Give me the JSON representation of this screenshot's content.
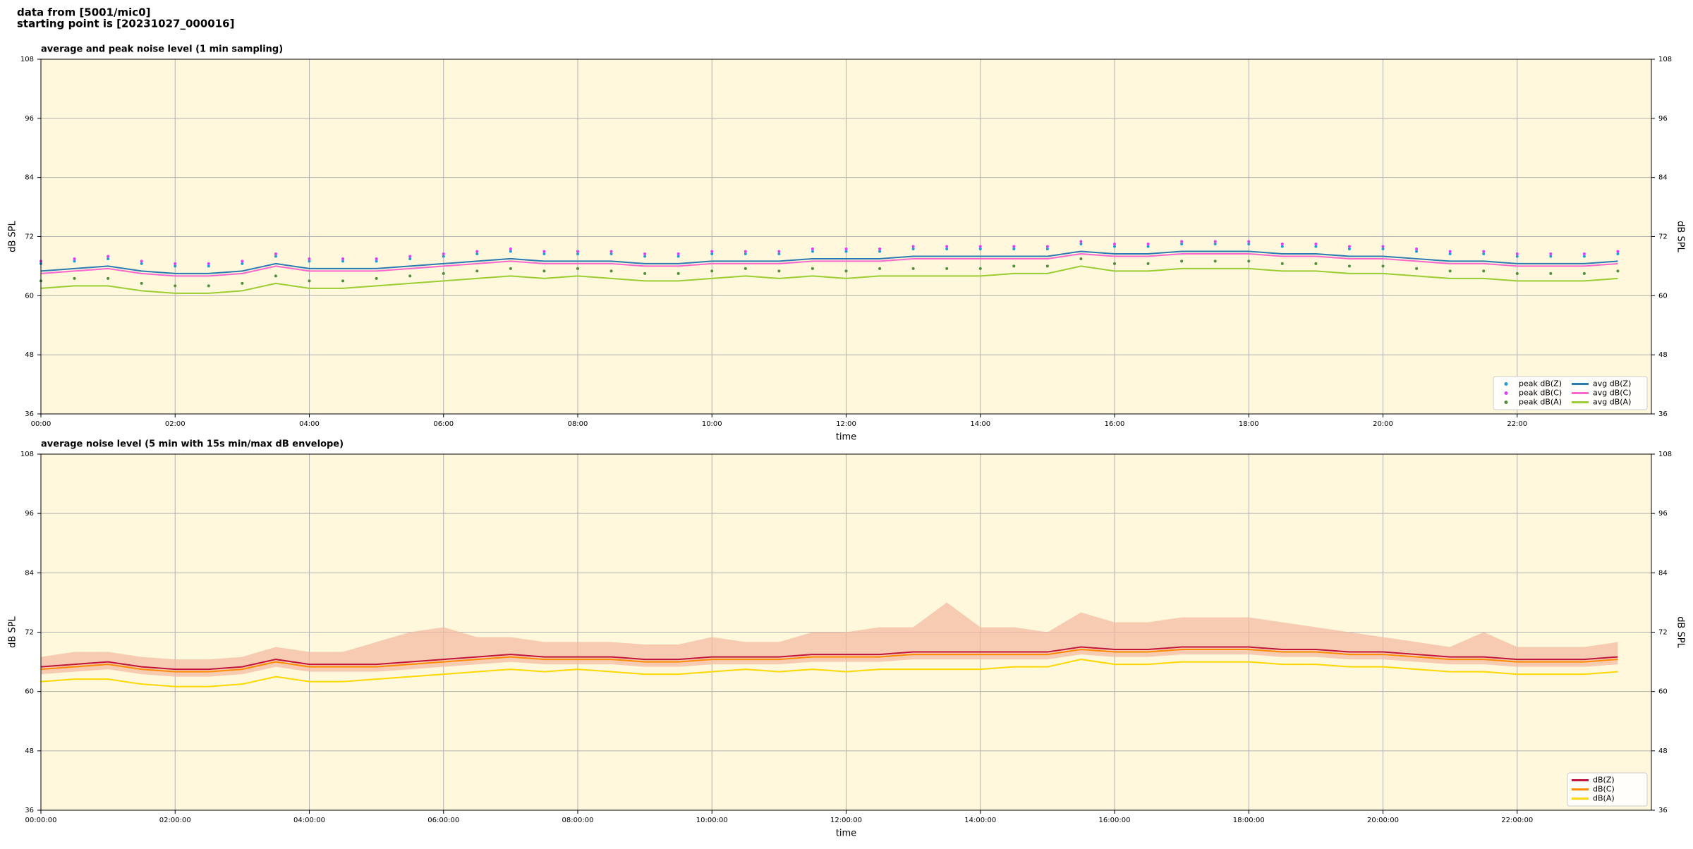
{
  "header": {
    "line1": "data from [5001/mic0]",
    "line2": "starting point is [20231027_000016]"
  },
  "chart_data": [
    {
      "type": "line",
      "title": "average and peak noise level (1 min sampling)",
      "xlabel": "time",
      "ylabel": "dB SPL",
      "xlim": [
        0,
        24
      ],
      "ylim": [
        36,
        108
      ],
      "yticks": [
        36,
        48,
        60,
        72,
        84,
        96,
        108
      ],
      "xticks": [
        {
          "value": 0,
          "label": "00:00"
        },
        {
          "value": 2,
          "label": "02:00"
        },
        {
          "value": 4,
          "label": "04:00"
        },
        {
          "value": 6,
          "label": "06:00"
        },
        {
          "value": 8,
          "label": "08:00"
        },
        {
          "value": 10,
          "label": "10:00"
        },
        {
          "value": 12,
          "label": "12:00"
        },
        {
          "value": 14,
          "label": "14:00"
        },
        {
          "value": 16,
          "label": "16:00"
        },
        {
          "value": 18,
          "label": "18:00"
        },
        {
          "value": 20,
          "label": "20:00"
        },
        {
          "value": 22,
          "label": "22:00"
        }
      ],
      "grid": true,
      "background": "#fff8dc",
      "legend": "lower right",
      "legend_columns": 2,
      "x": [
        0,
        0.5,
        1,
        1.5,
        2,
        2.5,
        3,
        3.5,
        4,
        4.5,
        5,
        5.5,
        6,
        6.5,
        7,
        7.5,
        8,
        8.5,
        9,
        9.5,
        10,
        10.5,
        11,
        11.5,
        12,
        12.5,
        13,
        13.5,
        14,
        14.5,
        15,
        15.5,
        16,
        16.5,
        17,
        17.5,
        18,
        18.5,
        19,
        19.5,
        20,
        20.5,
        21,
        21.5,
        22,
        22.5,
        23,
        23.5
      ],
      "series": [
        {
          "name": "peak dB(Z)",
          "kind": "scatter",
          "color": "#1f9fd5",
          "values": [
            66.5,
            67,
            67.5,
            66.5,
            66,
            66,
            66.5,
            68,
            67,
            67,
            67,
            67.5,
            68,
            68.5,
            69,
            68.5,
            68.5,
            68.5,
            68,
            68,
            68.5,
            68.5,
            68.5,
            69,
            69,
            69,
            69.5,
            69.5,
            69.5,
            69.5,
            69.5,
            70.5,
            70,
            70,
            70.5,
            70.5,
            70.5,
            70,
            70,
            69.5,
            69.5,
            69,
            68.5,
            68.5,
            68,
            68,
            68,
            68.5
          ]
        },
        {
          "name": "peak dB(C)",
          "kind": "scatter",
          "color": "#e040fb",
          "values": [
            67,
            67.5,
            68,
            67,
            66.5,
            66.5,
            67,
            68.5,
            67.5,
            67.5,
            67.5,
            68,
            68.5,
            69,
            69.5,
            69,
            69,
            69,
            68.5,
            68.5,
            69,
            69,
            69,
            69.5,
            69.5,
            69.5,
            70,
            70,
            70,
            70,
            70,
            71,
            70.5,
            70.5,
            71,
            71,
            71,
            70.5,
            70.5,
            70,
            70,
            69.5,
            69,
            69,
            68.5,
            68.5,
            68.5,
            69
          ]
        },
        {
          "name": "peak dB(A)",
          "kind": "scatter",
          "color": "#4f8f3a",
          "values": [
            63,
            63.5,
            63.5,
            62.5,
            62,
            62,
            62.5,
            64,
            63,
            63,
            63.5,
            64,
            64.5,
            65,
            65.5,
            65,
            65.5,
            65,
            64.5,
            64.5,
            65,
            65.5,
            65,
            65.5,
            65,
            65.5,
            65.5,
            65.5,
            65.5,
            66,
            66,
            67.5,
            66.5,
            66.5,
            67,
            67,
            67,
            66.5,
            66.5,
            66,
            66,
            65.5,
            65,
            65,
            64.5,
            64.5,
            64.5,
            65
          ]
        },
        {
          "name": "avg dB(Z)",
          "kind": "line",
          "color": "#2a7bb0",
          "values": [
            65,
            65.5,
            66,
            65,
            64.5,
            64.5,
            65,
            66.5,
            65.5,
            65.5,
            65.5,
            66,
            66.5,
            67,
            67.5,
            67,
            67,
            67,
            66.5,
            66.5,
            67,
            67,
            67,
            67.5,
            67.5,
            67.5,
            68,
            68,
            68,
            68,
            68,
            69,
            68.5,
            68.5,
            69,
            69,
            69,
            68.5,
            68.5,
            68,
            68,
            67.5,
            67,
            67,
            66.5,
            66.5,
            66.5,
            67
          ]
        },
        {
          "name": "avg dB(C)",
          "kind": "line",
          "color": "#ff66cc",
          "values": [
            64.5,
            65,
            65.5,
            64.5,
            64,
            64,
            64.5,
            66,
            65,
            65,
            65,
            65.5,
            66,
            66.5,
            67,
            66.5,
            66.5,
            66.5,
            66,
            66,
            66.5,
            66.5,
            66.5,
            67,
            67,
            67,
            67.5,
            67.5,
            67.5,
            67.5,
            67.5,
            68.5,
            68,
            68,
            68.5,
            68.5,
            68.5,
            68,
            68,
            67.5,
            67.5,
            67,
            66.5,
            66.5,
            66,
            66,
            66,
            66.5
          ]
        },
        {
          "name": "avg dB(A)",
          "kind": "line",
          "color": "#9acd32",
          "values": [
            61.5,
            62,
            62,
            61,
            60.5,
            60.5,
            61,
            62.5,
            61.5,
            61.5,
            62,
            62.5,
            63,
            63.5,
            64,
            63.5,
            64,
            63.5,
            63,
            63,
            63.5,
            64,
            63.5,
            64,
            63.5,
            64,
            64,
            64,
            64,
            64.5,
            64.5,
            66,
            65,
            65,
            65.5,
            65.5,
            65.5,
            65,
            65,
            64.5,
            64.5,
            64,
            63.5,
            63.5,
            63,
            63,
            63,
            63.5
          ]
        }
      ]
    },
    {
      "type": "line",
      "title": "average noise level (5 min with 15s min/max dB envelope)",
      "xlabel": "time",
      "ylabel": "dB SPL",
      "xlim": [
        0,
        24
      ],
      "ylim": [
        36,
        108
      ],
      "yticks": [
        36,
        48,
        60,
        72,
        84,
        96,
        108
      ],
      "xticks": [
        {
          "value": 0,
          "label": "00:00:00"
        },
        {
          "value": 2,
          "label": "02:00:00"
        },
        {
          "value": 4,
          "label": "04:00:00"
        },
        {
          "value": 6,
          "label": "06:00:00"
        },
        {
          "value": 8,
          "label": "08:00:00"
        },
        {
          "value": 10,
          "label": "10:00:00"
        },
        {
          "value": 12,
          "label": "12:00:00"
        },
        {
          "value": 14,
          "label": "14:00:00"
        },
        {
          "value": 16,
          "label": "16:00:00"
        },
        {
          "value": 18,
          "label": "18:00:00"
        },
        {
          "value": 20,
          "label": "20:00:00"
        },
        {
          "value": 22,
          "label": "22:00:00"
        }
      ],
      "grid": true,
      "background": "#fff8dc",
      "legend": "lower right",
      "legend_columns": 1,
      "x": [
        0,
        0.5,
        1,
        1.5,
        2,
        2.5,
        3,
        3.5,
        4,
        4.5,
        5,
        5.5,
        6,
        6.5,
        7,
        7.5,
        8,
        8.5,
        9,
        9.5,
        10,
        10.5,
        11,
        11.5,
        12,
        12.5,
        13,
        13.5,
        14,
        14.5,
        15,
        15.5,
        16,
        16.5,
        17,
        17.5,
        18,
        18.5,
        19,
        19.5,
        20,
        20.5,
        21,
        21.5,
        22,
        22.5,
        23,
        23.5
      ],
      "envelope": {
        "color": "#f4b8a0",
        "upper": [
          67,
          68,
          68,
          67,
          66.5,
          66.5,
          67,
          69,
          68,
          68,
          70,
          72,
          73,
          71,
          71,
          70,
          70,
          70,
          69.5,
          69.5,
          71,
          70,
          70,
          72,
          72,
          73,
          73,
          78,
          73,
          73,
          72,
          76,
          74,
          74,
          75,
          75,
          75,
          74,
          73,
          72,
          71,
          70,
          69,
          72,
          69,
          69,
          69,
          70
        ],
        "lower": [
          63.5,
          64,
          64.5,
          63.5,
          63,
          63,
          63.5,
          65,
          64,
          64,
          64,
          64.5,
          65,
          65.5,
          66,
          65.5,
          65.5,
          65.5,
          65,
          65,
          65.5,
          65.5,
          65.5,
          66,
          66,
          66,
          66.5,
          66.5,
          66.5,
          66.5,
          66.5,
          67.5,
          67,
          67,
          67.5,
          67.5,
          67.5,
          67,
          67,
          66.5,
          66.5,
          66,
          65.5,
          65.5,
          65,
          65,
          65,
          65.5
        ]
      },
      "series": [
        {
          "name": "dB(Z)",
          "kind": "line",
          "color": "#c0143c",
          "values": [
            65,
            65.5,
            66,
            65,
            64.5,
            64.5,
            65,
            66.5,
            65.5,
            65.5,
            65.5,
            66,
            66.5,
            67,
            67.5,
            67,
            67,
            67,
            66.5,
            66.5,
            67,
            67,
            67,
            67.5,
            67.5,
            67.5,
            68,
            68,
            68,
            68,
            68,
            69,
            68.5,
            68.5,
            69,
            69,
            69,
            68.5,
            68.5,
            68,
            68,
            67.5,
            67,
            67,
            66.5,
            66.5,
            66.5,
            67
          ]
        },
        {
          "name": "dB(C)",
          "kind": "line",
          "color": "#ff8c00",
          "values": [
            64.5,
            65,
            65.5,
            64.5,
            64,
            64,
            64.5,
            66,
            65,
            65,
            65,
            65.5,
            66,
            66.5,
            67,
            66.5,
            66.5,
            66.5,
            66,
            66,
            66.5,
            66.5,
            66.5,
            67,
            67,
            67,
            67.5,
            67.5,
            67.5,
            67.5,
            67.5,
            68.5,
            68,
            68,
            68.5,
            68.5,
            68.5,
            68,
            68,
            67.5,
            67.5,
            67,
            66.5,
            66.5,
            66,
            66,
            66,
            66.5
          ]
        },
        {
          "name": "dB(A)",
          "kind": "line",
          "color": "#ffd700",
          "values": [
            62,
            62.5,
            62.5,
            61.5,
            61,
            61,
            61.5,
            63,
            62,
            62,
            62.5,
            63,
            63.5,
            64,
            64.5,
            64,
            64.5,
            64,
            63.5,
            63.5,
            64,
            64.5,
            64,
            64.5,
            64,
            64.5,
            64.5,
            64.5,
            64.5,
            65,
            65,
            66.5,
            65.5,
            65.5,
            66,
            66,
            66,
            65.5,
            65.5,
            65,
            65,
            64.5,
            64,
            64,
            63.5,
            63.5,
            63.5,
            64
          ]
        }
      ]
    }
  ]
}
